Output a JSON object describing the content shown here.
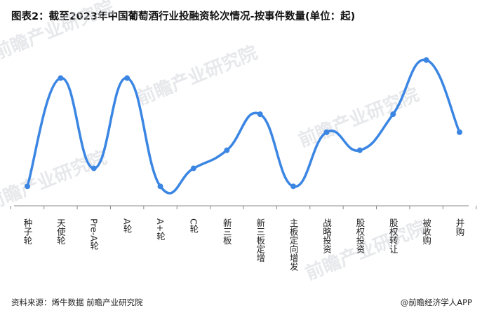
{
  "title": "图表2：截至2023年中国葡萄酒行业投融资轮次情况-按事件数量(单位：起)",
  "source": "资料来源：烯牛数据 前瞻产业研究院",
  "brand": "@前瞻经济学人APP",
  "watermark": "前瞻产业研究院",
  "colors": {
    "line": "#3b86e3",
    "point": "#3b86e3",
    "axis": "#888888"
  },
  "chart_data": {
    "type": "line",
    "title": "图表2：截至2023年中国葡萄酒行业投融资轮次情况-按事件数量(单位：起)",
    "xlabel": "",
    "ylabel": "",
    "categories": [
      "种子轮",
      "天使轮",
      "Pre-A轮",
      "A轮",
      "A+轮",
      "C轮",
      "新三板",
      "新三板定增",
      "主板定向增发",
      "战略投资",
      "股权投资",
      "股权转让",
      "被收购",
      "并购"
    ],
    "values": [
      1,
      7,
      2,
      7,
      1,
      2,
      3,
      5,
      1,
      4,
      3,
      5,
      8,
      4
    ],
    "ylim": [
      0,
      9
    ],
    "grid": false,
    "smooth": true
  }
}
